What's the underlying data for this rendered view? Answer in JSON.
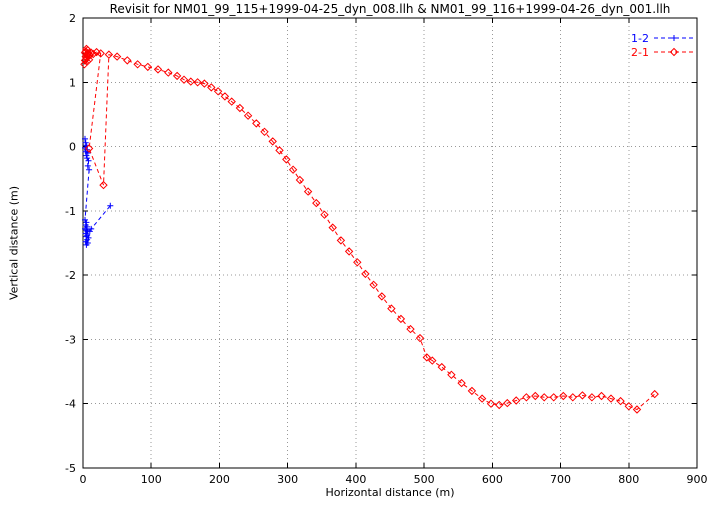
{
  "chart_data": {
    "type": "line",
    "title": "Revisit for NM01_99_115+1999-04-25_dyn_008.llh & NM01_99_116+1999-04-26_dyn_001.llh",
    "xlabel": "Horizontal distance (m)",
    "ylabel": "Vertical distance (m)",
    "xlim": [
      0,
      900
    ],
    "ylim": [
      -5,
      2
    ],
    "xticks": [
      0,
      100,
      200,
      300,
      400,
      500,
      600,
      700,
      800,
      900
    ],
    "yticks": [
      -5,
      -4,
      -3,
      -2,
      -1,
      0,
      1,
      2
    ],
    "grid": true,
    "grid_color": "#999999",
    "legend_position": "top-right",
    "series": [
      {
        "name": "1-2",
        "color": "#0000ff",
        "marker": "plus",
        "linestyle": "dashed",
        "points": [
          [
            3,
            0.12
          ],
          [
            4,
            0.06
          ],
          [
            5,
            0.02
          ],
          [
            3,
            -0.02
          ],
          [
            6,
            -0.05
          ],
          [
            4,
            -0.08
          ],
          [
            7,
            -0.1
          ],
          [
            5,
            -0.14
          ],
          [
            6,
            -0.18
          ],
          [
            8,
            -0.22
          ],
          [
            7,
            -0.3
          ],
          [
            9,
            -0.36
          ],
          [
            3,
            -1.14
          ],
          [
            5,
            -1.18
          ],
          [
            4,
            -1.22
          ],
          [
            6,
            -1.25
          ],
          [
            3,
            -1.28
          ],
          [
            5,
            -1.3
          ],
          [
            7,
            -1.32
          ],
          [
            4,
            -1.35
          ],
          [
            6,
            -1.38
          ],
          [
            5,
            -1.4
          ],
          [
            8,
            -1.42
          ],
          [
            6,
            -1.45
          ],
          [
            4,
            -1.48
          ],
          [
            7,
            -1.5
          ],
          [
            5,
            -1.53
          ],
          [
            10,
            -1.32
          ],
          [
            12,
            -1.28
          ],
          [
            40,
            -0.92
          ]
        ]
      },
      {
        "name": "2-1",
        "color": "#ff0000",
        "marker": "diamond",
        "linestyle": "dashed",
        "points": [
          [
            2,
            1.28
          ],
          [
            3,
            1.34
          ],
          [
            4,
            1.4
          ],
          [
            3,
            1.46
          ],
          [
            5,
            1.52
          ],
          [
            4,
            1.48
          ],
          [
            6,
            1.44
          ],
          [
            5,
            1.38
          ],
          [
            7,
            1.5
          ],
          [
            6,
            1.32
          ],
          [
            8,
            1.45
          ],
          [
            7,
            1.4
          ],
          [
            9,
            1.35
          ],
          [
            10,
            1.42
          ],
          [
            12,
            1.46
          ],
          [
            15,
            1.44
          ],
          [
            20,
            1.47
          ],
          [
            26,
            1.45
          ],
          [
            9,
            -0.03
          ],
          [
            30,
            -0.6
          ],
          [
            38,
            1.43
          ],
          [
            50,
            1.4
          ],
          [
            65,
            1.34
          ],
          [
            80,
            1.28
          ],
          [
            95,
            1.24
          ],
          [
            110,
            1.2
          ],
          [
            125,
            1.15
          ],
          [
            138,
            1.1
          ],
          [
            148,
            1.04
          ],
          [
            158,
            1.01
          ],
          [
            168,
            1.0
          ],
          [
            178,
            0.98
          ],
          [
            188,
            0.92
          ],
          [
            198,
            0.86
          ],
          [
            208,
            0.78
          ],
          [
            218,
            0.7
          ],
          [
            230,
            0.6
          ],
          [
            242,
            0.48
          ],
          [
            254,
            0.36
          ],
          [
            266,
            0.23
          ],
          [
            278,
            0.08
          ],
          [
            288,
            -0.06
          ],
          [
            298,
            -0.2
          ],
          [
            308,
            -0.36
          ],
          [
            318,
            -0.52
          ],
          [
            330,
            -0.7
          ],
          [
            342,
            -0.88
          ],
          [
            354,
            -1.06
          ],
          [
            366,
            -1.26
          ],
          [
            378,
            -1.46
          ],
          [
            390,
            -1.63
          ],
          [
            402,
            -1.8
          ],
          [
            414,
            -1.98
          ],
          [
            426,
            -2.15
          ],
          [
            438,
            -2.33
          ],
          [
            452,
            -2.52
          ],
          [
            466,
            -2.68
          ],
          [
            480,
            -2.84
          ],
          [
            494,
            -2.98
          ],
          [
            504,
            -3.28
          ],
          [
            512,
            -3.33
          ],
          [
            526,
            -3.43
          ],
          [
            540,
            -3.55
          ],
          [
            555,
            -3.68
          ],
          [
            570,
            -3.8
          ],
          [
            585,
            -3.92
          ],
          [
            598,
            -4.0
          ],
          [
            610,
            -4.02
          ],
          [
            622,
            -3.99
          ],
          [
            635,
            -3.95
          ],
          [
            650,
            -3.9
          ],
          [
            663,
            -3.88
          ],
          [
            676,
            -3.9
          ],
          [
            690,
            -3.9
          ],
          [
            704,
            -3.88
          ],
          [
            718,
            -3.9
          ],
          [
            732,
            -3.87
          ],
          [
            746,
            -3.9
          ],
          [
            760,
            -3.88
          ],
          [
            774,
            -3.92
          ],
          [
            788,
            -3.96
          ],
          [
            800,
            -4.04
          ],
          [
            812,
            -4.09
          ],
          [
            838,
            -3.85
          ]
        ]
      }
    ]
  }
}
